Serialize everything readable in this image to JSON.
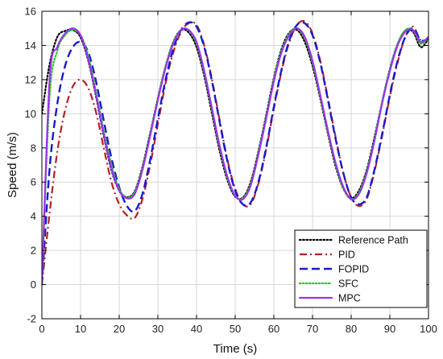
{
  "chart_data": {
    "type": "line",
    "xlabel": "Time (s)",
    "ylabel": "Speed (m/s)",
    "xlim": [
      0,
      100
    ],
    "ylim": [
      -2,
      16
    ],
    "xticks": [
      0,
      10,
      20,
      30,
      40,
      50,
      60,
      70,
      80,
      90,
      100
    ],
    "yticks": [
      -2,
      0,
      2,
      4,
      6,
      8,
      10,
      12,
      14,
      16
    ],
    "grid": true,
    "legend_position": "bottom-right",
    "series": [
      {
        "name": "Reference Path",
        "color": "#000000",
        "dash": "dotted",
        "x": [
          0,
          2,
          4,
          6,
          8,
          10,
          12,
          14,
          16,
          18,
          20,
          22,
          24,
          26,
          28,
          30,
          32,
          34,
          36,
          38,
          40,
          42,
          44,
          46,
          48,
          50,
          52,
          54,
          56,
          58,
          60,
          62,
          64,
          66,
          68,
          70,
          72,
          74,
          76,
          78,
          80,
          82,
          84,
          86,
          88,
          90,
          92,
          94,
          96,
          98,
          100
        ],
        "y": [
          10.0,
          12.9,
          14.5,
          14.85,
          14.9,
          14.47,
          13.1,
          11.0,
          8.7,
          6.7,
          5.5,
          5.12,
          5.46,
          6.88,
          8.87,
          10.9,
          12.8,
          14.2,
          14.9,
          14.75,
          13.9,
          12.2,
          10.0,
          7.8,
          6.1,
          5.15,
          5.1,
          6.0,
          7.8,
          9.9,
          12.1,
          13.8,
          14.75,
          14.9,
          14.2,
          12.8,
          10.9,
          8.8,
          6.9,
          5.6,
          5.05,
          5.5,
          6.7,
          8.6,
          10.7,
          12.6,
          14.1,
          14.85,
          14.8,
          13.9,
          14.4
        ]
      },
      {
        "name": "PID",
        "color": "#b22222",
        "dash": "dashdot",
        "x": [
          0,
          2,
          4,
          6,
          8,
          10,
          12,
          14,
          16,
          18,
          20,
          22,
          24,
          26,
          28,
          30,
          32,
          34,
          36,
          38,
          40,
          42,
          44,
          46,
          48,
          50,
          52,
          54,
          56,
          58,
          60,
          62,
          64,
          66,
          68,
          70,
          72,
          74,
          76,
          78,
          80,
          82,
          84,
          86,
          88,
          90,
          92,
          94,
          96,
          98,
          100
        ],
        "y": [
          0.0,
          4.2,
          7.8,
          10.2,
          11.6,
          12.0,
          11.5,
          10.1,
          8.0,
          6.0,
          4.7,
          4.05,
          3.9,
          5.0,
          7.0,
          9.4,
          11.8,
          13.6,
          14.8,
          15.3,
          15.2,
          14.0,
          12.0,
          9.6,
          7.3,
          5.6,
          4.7,
          4.7,
          5.9,
          7.9,
          10.3,
          12.5,
          14.2,
          15.2,
          15.4,
          14.7,
          13.1,
          10.9,
          8.6,
          6.5,
          5.1,
          4.6,
          5.0,
          6.6,
          8.7,
          11.0,
          13.0,
          14.5,
          15.1,
          14.3,
          14.4
        ]
      },
      {
        "name": "FOPID",
        "color": "#1a1acc",
        "dash": "dashed",
        "x": [
          0,
          2,
          4,
          6,
          8,
          10,
          12,
          14,
          16,
          18,
          20,
          22,
          24,
          26,
          28,
          30,
          32,
          34,
          36,
          38,
          40,
          42,
          44,
          46,
          48,
          50,
          52,
          54,
          56,
          58,
          60,
          62,
          64,
          66,
          68,
          70,
          72,
          74,
          76,
          78,
          80,
          82,
          84,
          86,
          88,
          90,
          92,
          94,
          96,
          98,
          100
        ],
        "y": [
          0.0,
          6.8,
          10.6,
          12.8,
          13.9,
          14.2,
          13.6,
          11.9,
          9.6,
          7.4,
          5.7,
          4.6,
          4.3,
          5.3,
          7.3,
          9.7,
          12.0,
          13.8,
          14.9,
          15.35,
          15.1,
          13.9,
          11.9,
          9.5,
          7.2,
          5.5,
          4.7,
          4.8,
          6.0,
          8.0,
          10.4,
          12.6,
          14.3,
          15.2,
          15.3,
          14.6,
          13.0,
          10.8,
          8.5,
          6.5,
          5.1,
          4.7,
          5.1,
          6.7,
          8.8,
          11.1,
          13.1,
          14.5,
          15.0,
          14.3,
          14.4
        ]
      },
      {
        "name": "SFC",
        "color": "#22cc22",
        "dash": "dotted-fine",
        "x": [
          0,
          2,
          4,
          6,
          8,
          10,
          12,
          14,
          16,
          18,
          20,
          22,
          24,
          26,
          28,
          30,
          32,
          34,
          36,
          38,
          40,
          42,
          44,
          46,
          48,
          50,
          52,
          54,
          56,
          58,
          60,
          62,
          64,
          66,
          68,
          70,
          72,
          74,
          76,
          78,
          80,
          82,
          84,
          86,
          88,
          90,
          92,
          94,
          96,
          98,
          100
        ],
        "y": [
          0.0,
          11.0,
          13.7,
          14.6,
          14.9,
          14.6,
          13.4,
          11.3,
          9.0,
          7.0,
          5.6,
          5.1,
          5.4,
          6.8,
          8.8,
          10.9,
          12.8,
          14.2,
          14.9,
          14.9,
          14.1,
          12.4,
          10.2,
          8.0,
          6.2,
          5.2,
          5.05,
          5.9,
          7.7,
          9.8,
          12.0,
          13.7,
          14.7,
          15.0,
          14.4,
          13.0,
          11.0,
          8.9,
          7.0,
          5.6,
          5.0,
          5.4,
          6.6,
          8.5,
          10.7,
          12.6,
          14.1,
          14.9,
          14.9,
          14.1,
          14.5
        ]
      },
      {
        "name": "MPC",
        "color": "#9933ee",
        "dash": "solid",
        "x": [
          0,
          2,
          4,
          6,
          8,
          10,
          12,
          14,
          16,
          18,
          20,
          22,
          24,
          26,
          28,
          30,
          32,
          34,
          36,
          38,
          40,
          42,
          44,
          46,
          48,
          50,
          52,
          54,
          56,
          58,
          60,
          62,
          64,
          66,
          68,
          70,
          72,
          74,
          76,
          78,
          80,
          82,
          84,
          86,
          88,
          90,
          92,
          94,
          96,
          98,
          100
        ],
        "y": [
          0.0,
          12.0,
          13.9,
          14.7,
          15.0,
          14.6,
          13.2,
          11.1,
          8.8,
          6.8,
          5.5,
          5.05,
          5.3,
          6.7,
          8.7,
          10.8,
          12.7,
          14.1,
          14.9,
          14.9,
          14.2,
          12.5,
          10.3,
          8.1,
          6.3,
          5.2,
          5.0,
          5.8,
          7.6,
          9.7,
          11.9,
          13.6,
          14.6,
          15.0,
          14.5,
          13.1,
          11.1,
          9.0,
          7.1,
          5.7,
          5.0,
          5.3,
          6.5,
          8.4,
          10.6,
          12.5,
          14.0,
          14.8,
          14.9,
          14.2,
          14.5
        ]
      }
    ]
  }
}
